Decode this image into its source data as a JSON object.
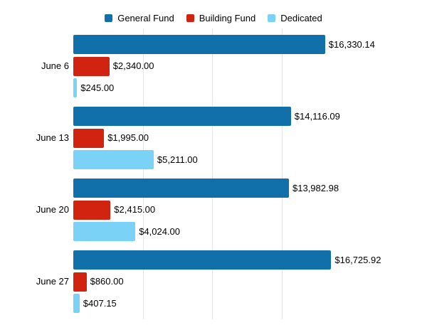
{
  "chart_data": {
    "type": "bar",
    "orientation": "horizontal",
    "title": "",
    "categories": [
      "June 6",
      "June 13",
      "June 20",
      "June 27"
    ],
    "series": [
      {
        "name": "General Fund",
        "color": "#1170aa",
        "values": [
          16330.14,
          14116.09,
          13982.98,
          16725.92
        ],
        "labels": [
          "$16,330.14",
          "$14,116.09",
          "$13,982.98",
          "$16,725.92"
        ]
      },
      {
        "name": "Building Fund",
        "color": "#d02310",
        "values": [
          2340.0,
          1995.0,
          2415.0,
          860.0
        ],
        "labels": [
          "$2,340.00",
          "$1,995.00",
          "$2,415.00",
          "$860.00"
        ]
      },
      {
        "name": "Dedicated",
        "color": "#7ad2f7",
        "values": [
          245.0,
          5211.0,
          4024.0,
          407.15
        ],
        "labels": [
          "$245.00",
          "$5,211.00",
          "$4,024.00",
          "$407.15"
        ]
      }
    ],
    "xlim": [
      0,
      18000
    ],
    "gridline_values": [
      4500,
      9000,
      13500
    ],
    "grid": true,
    "legend_position": "top",
    "value_labels": true,
    "background_color": "#ffffff",
    "gridline_color": "#e6e6e6",
    "text_color": "#000000"
  }
}
